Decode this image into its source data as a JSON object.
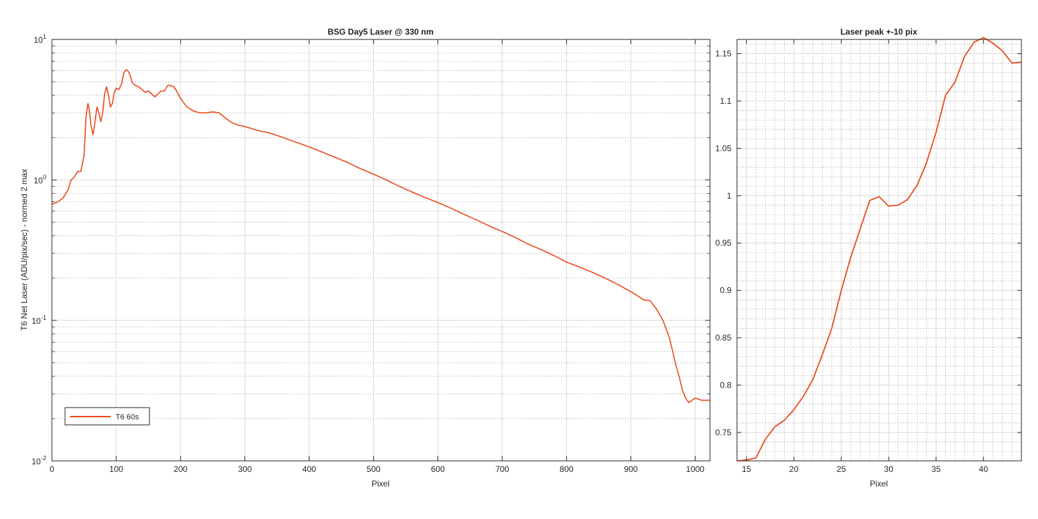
{
  "colors": {
    "series": "#ea4b1c",
    "grid_major": "#d9d9d9",
    "grid_minor": "#9a9a9a",
    "axis": "#262626"
  },
  "chart_data": [
    {
      "type": "line",
      "title": "BSG  Day5 Laser @ 330 nm",
      "xlabel": "Pixel",
      "ylabel": "T6 Net Laser (ADU/pix/sec) - normed 2 max",
      "yscale": "log",
      "xlim": [
        0,
        1023
      ],
      "ylim": [
        0.01,
        10
      ],
      "xticks": [
        0,
        100,
        200,
        300,
        400,
        500,
        600,
        700,
        800,
        900,
        1000
      ],
      "yticks": [
        {
          "value": 0.01,
          "base": "10",
          "exp": "-2"
        },
        {
          "value": 0.1,
          "base": "10",
          "exp": "-1"
        },
        {
          "value": 1,
          "base": "10",
          "exp": "0"
        },
        {
          "value": 10,
          "base": "10",
          "exp": "1"
        }
      ],
      "grid": true,
      "legend": {
        "position": "bottom-left",
        "entries": [
          "T6 60s"
        ]
      },
      "series": [
        {
          "name": "T6 60s",
          "x": [
            0,
            10,
            18,
            25,
            30,
            35,
            40,
            45,
            50,
            53,
            56,
            58,
            61,
            64,
            67,
            70,
            73,
            76,
            79,
            82,
            85,
            88,
            91,
            94,
            97,
            100,
            104,
            108,
            112,
            116,
            119,
            122,
            125,
            130,
            135,
            140,
            145,
            150,
            155,
            160,
            165,
            170,
            175,
            180,
            185,
            190,
            195,
            200,
            210,
            220,
            230,
            240,
            250,
            260,
            270,
            280,
            290,
            300,
            320,
            340,
            360,
            380,
            400,
            420,
            440,
            460,
            480,
            500,
            520,
            540,
            560,
            580,
            600,
            620,
            640,
            660,
            680,
            700,
            720,
            740,
            760,
            780,
            800,
            820,
            840,
            860,
            880,
            900,
            910,
            920,
            930,
            940,
            950,
            960,
            965,
            970,
            975,
            980,
            985,
            990,
            1000,
            1010,
            1023
          ],
          "values": [
            0.67,
            0.7,
            0.75,
            0.85,
            1.0,
            1.05,
            1.15,
            1.15,
            1.5,
            2.8,
            3.5,
            3.2,
            2.4,
            2.1,
            2.6,
            3.3,
            3.0,
            2.6,
            3.0,
            4.1,
            4.6,
            4.0,
            3.3,
            3.5,
            4.2,
            4.5,
            4.4,
            4.8,
            5.8,
            6.1,
            5.9,
            5.5,
            4.9,
            4.7,
            4.6,
            4.4,
            4.2,
            4.3,
            4.1,
            3.9,
            4.1,
            4.3,
            4.3,
            4.7,
            4.7,
            4.6,
            4.2,
            3.8,
            3.3,
            3.1,
            3.0,
            3.0,
            3.05,
            3.0,
            2.75,
            2.55,
            2.45,
            2.4,
            2.25,
            2.15,
            2.0,
            1.85,
            1.72,
            1.58,
            1.45,
            1.33,
            1.2,
            1.1,
            1.0,
            0.9,
            0.82,
            0.75,
            0.69,
            0.63,
            0.57,
            0.52,
            0.47,
            0.43,
            0.39,
            0.35,
            0.32,
            0.29,
            0.26,
            0.24,
            0.22,
            0.2,
            0.18,
            0.16,
            0.15,
            0.14,
            0.138,
            0.12,
            0.1,
            0.075,
            0.06,
            0.048,
            0.04,
            0.032,
            0.028,
            0.026,
            0.028,
            0.027,
            0.027
          ]
        }
      ]
    },
    {
      "type": "line",
      "title": "Laser peak +-10 pix",
      "xlabel": "Pixel",
      "ylabel": "",
      "yscale": "linear",
      "xlim": [
        14,
        44
      ],
      "ylim": [
        0.72,
        1.165
      ],
      "xticks": [
        15,
        20,
        25,
        30,
        35,
        40
      ],
      "yticks": [
        0.75,
        0.8,
        0.85,
        0.9,
        0.95,
        1,
        1.05,
        1.1,
        1.15
      ],
      "grid": true,
      "series": [
        {
          "name": "T6 60s",
          "x": [
            14,
            15,
            16,
            17,
            18,
            19,
            20,
            21,
            22,
            23,
            24,
            25,
            26,
            27,
            28,
            29,
            30,
            31,
            32,
            33,
            34,
            35,
            36,
            37,
            38,
            39,
            40,
            41,
            42,
            43,
            44
          ],
          "values": [
            0.72,
            0.721,
            0.723,
            0.743,
            0.756,
            0.763,
            0.774,
            0.788,
            0.806,
            0.832,
            0.86,
            0.9,
            0.935,
            0.965,
            0.995,
            0.999,
            0.989,
            0.99,
            0.996,
            1.011,
            1.035,
            1.067,
            1.106,
            1.12,
            1.147,
            1.162,
            1.167,
            1.161,
            1.153,
            1.14,
            1.141
          ]
        }
      ]
    }
  ]
}
